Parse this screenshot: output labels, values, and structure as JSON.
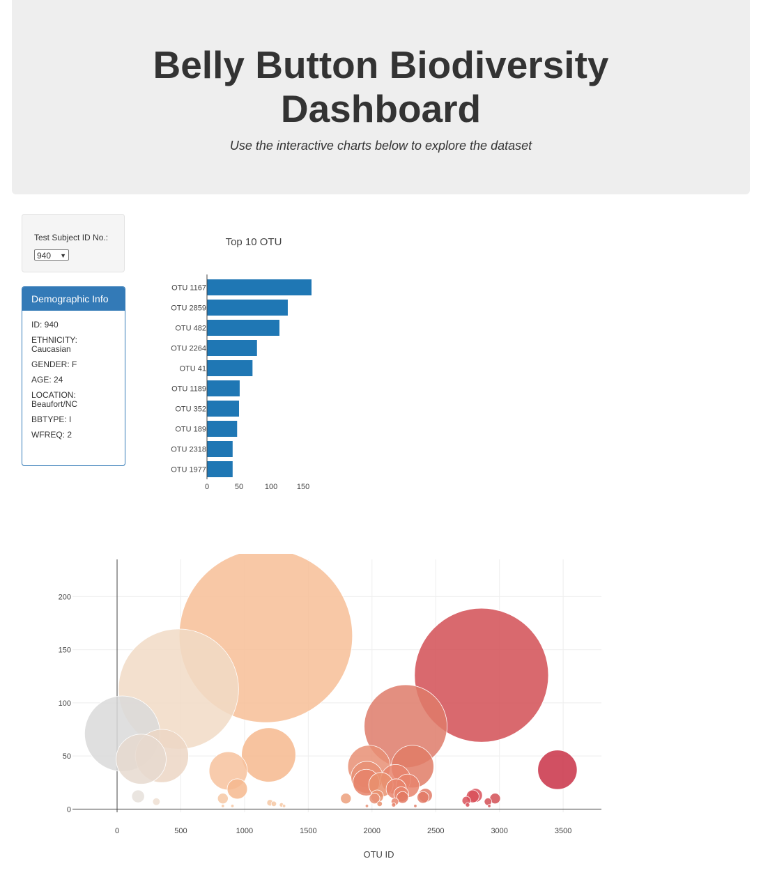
{
  "header": {
    "title_line1": "Belly Button Biodiversity",
    "title_line2": "Dashboard",
    "subtitle": "Use the interactive charts below to explore the dataset"
  },
  "selector": {
    "label": "Test Subject ID No.:",
    "value": "940"
  },
  "demographics": {
    "heading": "Demographic Info",
    "rows": [
      "ID: 940",
      "ETHNICITY: Caucasian",
      "GENDER: F",
      "AGE: 24",
      "LOCATION: Beaufort/NC",
      "BBTYPE: I",
      "WFREQ: 2"
    ]
  },
  "colors": {
    "bar": "#1f77b4",
    "panel": "#337ab7",
    "jumbotron": "#eeeeee"
  },
  "chart_data": [
    {
      "type": "bar",
      "orientation": "horizontal",
      "title": "Top 10 OTU",
      "categories": [
        "OTU 1167",
        "OTU 2859",
        "OTU 482",
        "OTU 2264",
        "OTU 41",
        "OTU 1189",
        "OTU 352",
        "OTU 189",
        "OTU 2318",
        "OTU 1977"
      ],
      "values": [
        163,
        126,
        113,
        78,
        71,
        51,
        50,
        47,
        40,
        40
      ],
      "xlim": [
        0,
        163
      ],
      "xticks": [
        0,
        50,
        100,
        150
      ]
    },
    {
      "type": "scatter",
      "style": "bubble",
      "xlabel": "OTU ID",
      "xlim": [
        -350,
        3800
      ],
      "ylim": [
        -3,
        235
      ],
      "xticks": [
        0,
        500,
        1000,
        1500,
        2000,
        2500,
        3000,
        3500
      ],
      "yticks": [
        0,
        50,
        100,
        150,
        200
      ],
      "colorscale": "Earth",
      "points": [
        {
          "x": 41,
          "y": 71,
          "size": 71,
          "color": "#d9d9d9"
        },
        {
          "x": 189,
          "y": 47,
          "size": 47,
          "color": "#e6d9cf"
        },
        {
          "x": 352,
          "y": 50,
          "size": 50,
          "color": "#ecd6c4"
        },
        {
          "x": 482,
          "y": 113,
          "size": 113,
          "color": "#f1dac6"
        },
        {
          "x": 1167,
          "y": 163,
          "size": 163,
          "color": "#f7be96"
        },
        {
          "x": 872,
          "y": 36,
          "size": 36,
          "color": "#f7c29d"
        },
        {
          "x": 1189,
          "y": 51,
          "size": 51,
          "color": "#f6b98e"
        },
        {
          "x": 943,
          "y": 19,
          "size": 19,
          "color": "#f6b98e"
        },
        {
          "x": 2859,
          "y": 126,
          "size": 126,
          "color": "#d24f55"
        },
        {
          "x": 2264,
          "y": 78,
          "size": 78,
          "color": "#de7b6a"
        },
        {
          "x": 2318,
          "y": 40,
          "size": 40,
          "color": "#e07d66"
        },
        {
          "x": 1977,
          "y": 40,
          "size": 40,
          "color": "#e88f74"
        },
        {
          "x": 1960,
          "y": 30,
          "size": 30,
          "color": "#e88f74"
        },
        {
          "x": 1955,
          "y": 25,
          "size": 25,
          "color": "#e6836a"
        },
        {
          "x": 2186,
          "y": 28,
          "size": 28,
          "color": "#e8846c"
        },
        {
          "x": 2070,
          "y": 23,
          "size": 23,
          "color": "#e9906f"
        },
        {
          "x": 2190,
          "y": 19,
          "size": 19,
          "color": "#e8846c"
        },
        {
          "x": 2280,
          "y": 22,
          "size": 22,
          "color": "#e8846c"
        },
        {
          "x": 2230,
          "y": 14,
          "size": 14,
          "color": "#e8846c"
        },
        {
          "x": 2040,
          "y": 12,
          "size": 12,
          "color": "#e9906f"
        },
        {
          "x": 2020,
          "y": 10,
          "size": 10,
          "color": "#e88f74"
        },
        {
          "x": 2240,
          "y": 11,
          "size": 11,
          "color": "#e27862"
        },
        {
          "x": 2419,
          "y": 13,
          "size": 13,
          "color": "#e27a66"
        },
        {
          "x": 2400,
          "y": 11,
          "size": 11,
          "color": "#e27a66"
        },
        {
          "x": 3455,
          "y": 37,
          "size": 37,
          "color": "#c93146"
        },
        {
          "x": 2812,
          "y": 13,
          "size": 13,
          "color": "#d9515a"
        },
        {
          "x": 2790,
          "y": 12,
          "size": 12,
          "color": "#d9515a"
        },
        {
          "x": 2966,
          "y": 10,
          "size": 10,
          "color": "#d24f55"
        },
        {
          "x": 2740,
          "y": 8,
          "size": 8,
          "color": "#d9515a"
        },
        {
          "x": 2910,
          "y": 7,
          "size": 7,
          "color": "#d24f55"
        },
        {
          "x": 2750,
          "y": 4,
          "size": 4,
          "color": "#d9515a"
        },
        {
          "x": 1795,
          "y": 10,
          "size": 10,
          "color": "#eca07c"
        },
        {
          "x": 830,
          "y": 10,
          "size": 10,
          "color": "#f6c8a5"
        },
        {
          "x": 165,
          "y": 12,
          "size": 12,
          "color": "#e6e0da"
        },
        {
          "x": 308,
          "y": 7,
          "size": 7,
          "color": "#eedfd2"
        },
        {
          "x": 2180,
          "y": 7,
          "size": 7,
          "color": "#e8846c"
        },
        {
          "x": 2060,
          "y": 5,
          "size": 5,
          "color": "#e9906f"
        },
        {
          "x": 1200,
          "y": 6,
          "size": 6,
          "color": "#f6c8a5"
        },
        {
          "x": 1230,
          "y": 5,
          "size": 5,
          "color": "#f6c8a5"
        },
        {
          "x": 1290,
          "y": 4,
          "size": 4,
          "color": "#f6c8a5"
        },
        {
          "x": 1310,
          "y": 3,
          "size": 3,
          "color": "#f6c8a5"
        },
        {
          "x": 2170,
          "y": 4,
          "size": 4,
          "color": "#e8846c"
        },
        {
          "x": 2340,
          "y": 3,
          "size": 3,
          "color": "#e07d66"
        },
        {
          "x": 1960,
          "y": 3,
          "size": 3,
          "color": "#e88f74"
        },
        {
          "x": 905,
          "y": 3,
          "size": 3,
          "color": "#f6c8a5"
        },
        {
          "x": 830,
          "y": 3,
          "size": 3,
          "color": "#f6c8a5"
        },
        {
          "x": 2920,
          "y": 3,
          "size": 3,
          "color": "#d24f55"
        }
      ]
    }
  ]
}
